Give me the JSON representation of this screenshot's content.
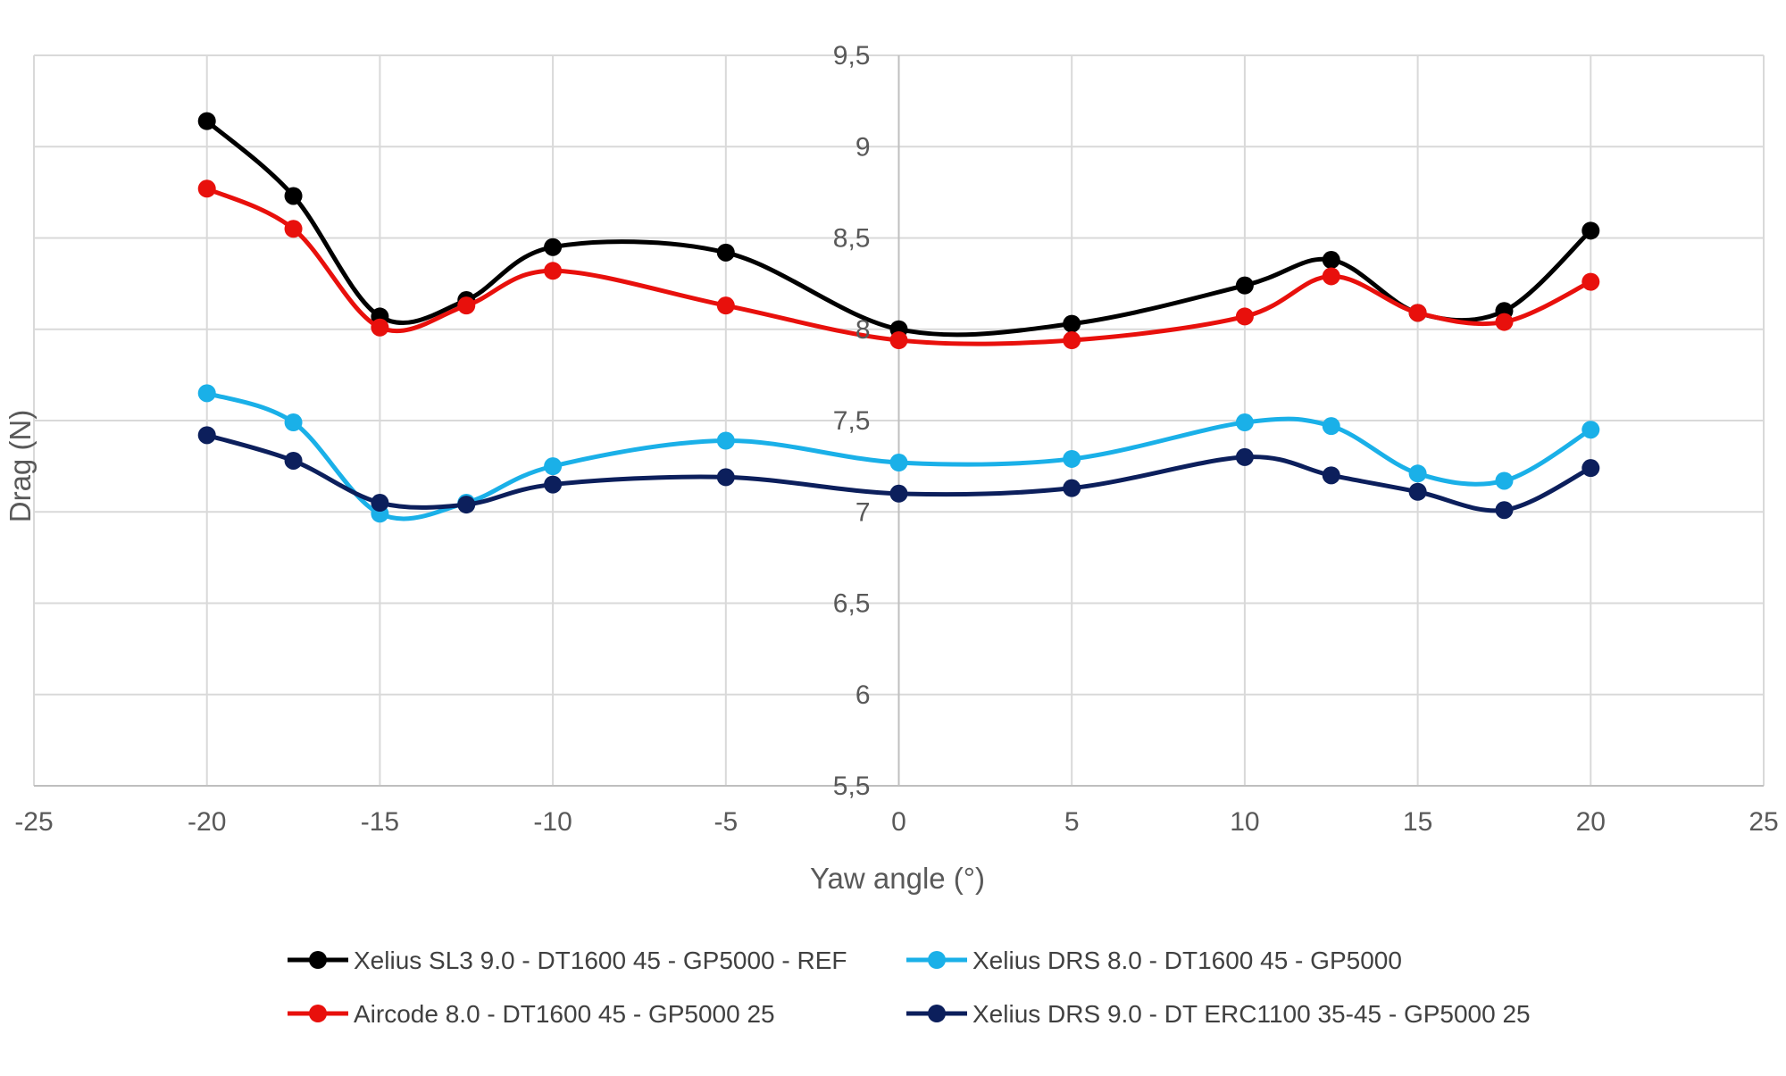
{
  "chart_data": {
    "type": "line",
    "title": "",
    "xlabel": "Yaw angle (°)",
    "ylabel": "Drag (N)",
    "xlim": [
      -25,
      25
    ],
    "ylim": [
      5.5,
      9.5
    ],
    "x_ticks": [
      "-25",
      "-20",
      "-15",
      "-10",
      "-5",
      "0",
      "5",
      "10",
      "15",
      "20",
      "25"
    ],
    "y_ticks": [
      "5,5",
      "6",
      "6,5",
      "7",
      "7,5",
      "8",
      "8,5",
      "9",
      "9,5"
    ],
    "grid": true,
    "smooth": true,
    "legend_position": "bottom",
    "series": [
      {
        "name": "Xelius SL3 9.0 - DT1600 45 - GP5000 - REF",
        "color": "#000000",
        "marker": "circle",
        "points": [
          [
            -20,
            9.14
          ],
          [
            -17.5,
            8.73
          ],
          [
            -15,
            8.07
          ],
          [
            -12.5,
            8.16
          ],
          [
            -10,
            8.45
          ],
          [
            -5,
            8.42
          ],
          [
            0,
            8.0
          ],
          [
            5,
            8.03
          ],
          [
            10,
            8.24
          ],
          [
            12.5,
            8.38
          ],
          [
            15,
            8.09
          ],
          [
            17.5,
            8.1
          ],
          [
            20,
            8.54
          ]
        ]
      },
      {
        "name": "Xelius DRS 8.0 - DT1600 45 - GP5000",
        "color": "#1ab0e8",
        "marker": "circle",
        "points": [
          [
            -20,
            7.65
          ],
          [
            -17.5,
            7.49
          ],
          [
            -15,
            6.99
          ],
          [
            -12.5,
            7.05
          ],
          [
            -10,
            7.25
          ],
          [
            -5,
            7.39
          ],
          [
            0,
            7.27
          ],
          [
            5,
            7.29
          ],
          [
            10,
            7.49
          ],
          [
            12.5,
            7.47
          ],
          [
            15,
            7.21
          ],
          [
            17.5,
            7.17
          ],
          [
            20,
            7.45
          ]
        ]
      },
      {
        "name": "Aircode 8.0 - DT1600 45 - GP5000 25",
        "color": "#e8100c",
        "marker": "circle",
        "points": [
          [
            -20,
            8.77
          ],
          [
            -17.5,
            8.55
          ],
          [
            -15,
            8.01
          ],
          [
            -12.5,
            8.13
          ],
          [
            -10,
            8.32
          ],
          [
            -5,
            8.13
          ],
          [
            0,
            7.94
          ],
          [
            5,
            7.94
          ],
          [
            10,
            8.07
          ],
          [
            12.5,
            8.29
          ],
          [
            15,
            8.09
          ],
          [
            17.5,
            8.04
          ],
          [
            20,
            8.26
          ]
        ]
      },
      {
        "name": "Xelius DRS 9.0 - DT ERC1100 35-45 - GP5000  25",
        "color": "#0c1f5c",
        "marker": "circle",
        "points": [
          [
            -20,
            7.42
          ],
          [
            -17.5,
            7.28
          ],
          [
            -15,
            7.05
          ],
          [
            -12.5,
            7.04
          ],
          [
            -10,
            7.15
          ],
          [
            -5,
            7.19
          ],
          [
            0,
            7.1
          ],
          [
            5,
            7.13
          ],
          [
            10,
            7.3
          ],
          [
            12.5,
            7.2
          ],
          [
            15,
            7.11
          ],
          [
            17.5,
            7.01
          ],
          [
            20,
            7.24
          ]
        ]
      }
    ]
  }
}
